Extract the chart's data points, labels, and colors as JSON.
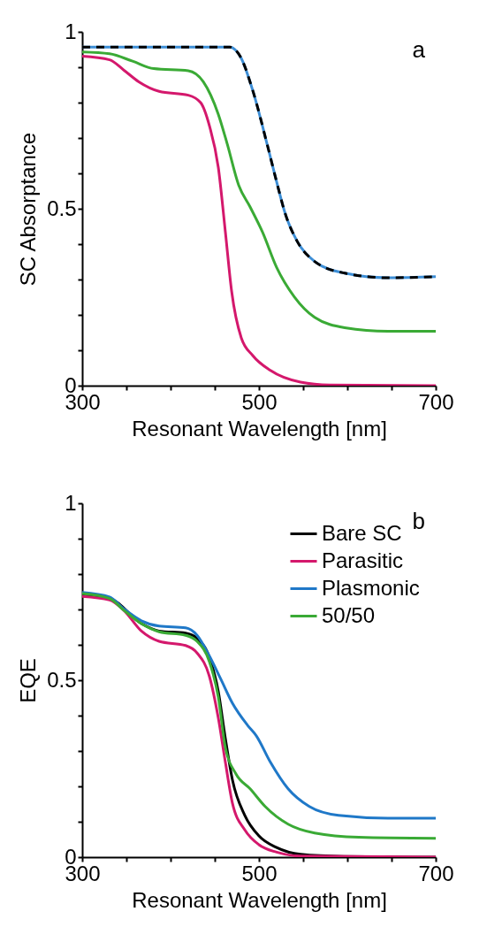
{
  "chart_data": [
    {
      "type": "line",
      "annotations": [
        "a"
      ],
      "xlabel": "Resonant Wavelength [nm]",
      "ylabel": "SC Absorptance",
      "xlim": [
        300,
        700
      ],
      "ylim": [
        0,
        1
      ],
      "xticks": [
        300,
        {
          "value": 350,
          "label": null
        },
        {
          "value": 400,
          "label": null
        },
        {
          "value": 450,
          "label": null
        },
        500,
        {
          "value": 550,
          "label": null
        },
        {
          "value": 600,
          "label": null
        },
        {
          "value": 650,
          "label": null
        },
        700
      ],
      "yticks": [
        0,
        {
          "value": 0.1,
          "label": null
        },
        {
          "value": 0.2,
          "label": null
        },
        {
          "value": 0.3,
          "label": null
        },
        {
          "value": 0.4,
          "label": null
        },
        0.5,
        {
          "value": 0.6,
          "label": null
        },
        {
          "value": 0.7,
          "label": null
        },
        {
          "value": 0.8,
          "label": null
        },
        {
          "value": 0.9,
          "label": null
        },
        1
      ],
      "legend": false,
      "grid": false,
      "series": [
        {
          "color": "#3d8ed6",
          "line_style": "solid",
          "x": [
            300,
            400,
            467,
            480,
            493,
            510,
            520,
            530,
            543,
            563,
            597,
            646,
            700
          ],
          "values": [
            0.957,
            0.957,
            0.957,
            0.925,
            0.834,
            0.675,
            0.576,
            0.484,
            0.409,
            0.351,
            0.318,
            0.305,
            0.308
          ]
        },
        {
          "color": "#000000",
          "line_style": "dashed",
          "x": [
            300,
            400,
            467,
            480,
            493,
            510,
            520,
            530,
            543,
            563,
            597,
            646,
            700
          ],
          "values": [
            0.957,
            0.957,
            0.957,
            0.925,
            0.834,
            0.675,
            0.576,
            0.484,
            0.409,
            0.351,
            0.318,
            0.305,
            0.308
          ]
        },
        {
          "color": "#3aaa35",
          "line_style": "solid",
          "x": [
            300,
            331,
            357,
            381,
            420,
            437,
            454,
            464,
            477,
            490,
            504,
            520,
            540,
            563,
            597,
            646,
            700
          ],
          "values": [
            0.943,
            0.938,
            0.917,
            0.896,
            0.89,
            0.859,
            0.767,
            0.684,
            0.567,
            0.505,
            0.434,
            0.334,
            0.251,
            0.193,
            0.164,
            0.154,
            0.154
          ]
        },
        {
          "color": "#d4186c",
          "line_style": "solid",
          "x": [
            300,
            331,
            347,
            364,
            387,
            420,
            434,
            444,
            454,
            462,
            469,
            480,
            493,
            513,
            547,
            580,
            700
          ],
          "values": [
            0.931,
            0.921,
            0.892,
            0.859,
            0.832,
            0.821,
            0.8,
            0.734,
            0.617,
            0.434,
            0.268,
            0.135,
            0.085,
            0.043,
            0.01,
            0.002,
            0
          ]
        }
      ]
    },
    {
      "type": "line",
      "annotations": [
        "b"
      ],
      "xlabel": "Resonant Wavelength [nm]",
      "ylabel": "EQE",
      "xlim": [
        300,
        700
      ],
      "ylim": [
        0,
        1
      ],
      "xticks": [
        300,
        {
          "value": 350,
          "label": null
        },
        {
          "value": 400,
          "label": null
        },
        {
          "value": 450,
          "label": null
        },
        500,
        {
          "value": 550,
          "label": null
        },
        {
          "value": 600,
          "label": null
        },
        {
          "value": 650,
          "label": null
        },
        700
      ],
      "yticks": [
        0,
        {
          "value": 0.1,
          "label": null
        },
        {
          "value": 0.2,
          "label": null
        },
        {
          "value": 0.3,
          "label": null
        },
        {
          "value": 0.4,
          "label": null
        },
        0.5,
        {
          "value": 0.6,
          "label": null
        },
        {
          "value": 0.7,
          "label": null
        },
        {
          "value": 0.8,
          "label": null
        },
        {
          "value": 0.9,
          "label": null
        },
        1
      ],
      "legend": "top right",
      "grid": false,
      "series": [
        {
          "name": "Bare SC",
          "color": "#000000",
          "x": [
            300,
            331,
            367,
            387,
            417,
            430,
            444,
            454,
            462,
            470,
            484,
            500,
            520,
            547,
            596,
            700
          ],
          "values": [
            0.739,
            0.731,
            0.66,
            0.639,
            0.633,
            0.618,
            0.564,
            0.468,
            0.335,
            0.218,
            0.118,
            0.06,
            0.027,
            0.008,
            0.002,
            0
          ]
        },
        {
          "name": "Parasitic",
          "color": "#d4186c",
          "x": [
            300,
            331,
            347,
            367,
            387,
            417,
            430,
            444,
            454,
            462,
            470,
            484,
            500,
            520,
            547,
            700
          ],
          "values": [
            0.737,
            0.727,
            0.698,
            0.639,
            0.61,
            0.598,
            0.577,
            0.51,
            0.393,
            0.268,
            0.152,
            0.077,
            0.035,
            0.014,
            0.003,
            0
          ]
        },
        {
          "name": "Plasmonic",
          "color": "#1f78c8",
          "x": [
            300,
            331,
            347,
            367,
            387,
            417,
            430,
            444,
            457,
            470,
            487,
            497,
            513,
            533,
            557,
            590,
            646,
            700
          ],
          "values": [
            0.748,
            0.735,
            0.702,
            0.668,
            0.653,
            0.648,
            0.627,
            0.568,
            0.502,
            0.435,
            0.373,
            0.343,
            0.268,
            0.193,
            0.143,
            0.118,
            0.11,
            0.11
          ]
        },
        {
          "name": "50/50",
          "color": "#3aaa35",
          "x": [
            300,
            331,
            347,
            367,
            387,
            417,
            430,
            444,
            454,
            462,
            474,
            490,
            507,
            533,
            563,
            613,
            700
          ],
          "values": [
            0.745,
            0.731,
            0.698,
            0.66,
            0.637,
            0.627,
            0.61,
            0.552,
            0.452,
            0.31,
            0.235,
            0.193,
            0.143,
            0.093,
            0.068,
            0.056,
            0.053
          ]
        }
      ]
    }
  ]
}
